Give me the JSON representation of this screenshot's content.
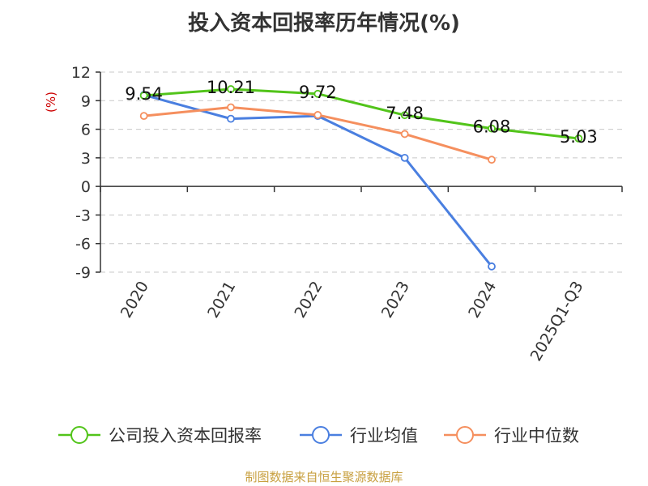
{
  "chart_data": {
    "type": "line",
    "title": "投入资本回报率历年情况(%)",
    "ylabel": "(%)",
    "categories": [
      "2020",
      "2021",
      "2022",
      "2023",
      "2024",
      "2025Q1-Q3"
    ],
    "ylim": [
      -9,
      12
    ],
    "yticks": [
      12,
      9,
      6,
      3,
      0,
      -3,
      -6,
      -9
    ],
    "grid": true,
    "legend_position": "bottom",
    "series": [
      {
        "name": "公司投入资本回报率",
        "color": "#52c41a",
        "values": [
          9.54,
          10.21,
          9.72,
          7.48,
          6.08,
          5.03
        ],
        "labels": [
          "9.54",
          "10.21",
          "9.72",
          "7.48",
          "6.08",
          "5.03"
        ]
      },
      {
        "name": "行业均值",
        "color": "#4a7fe0",
        "values": [
          9.6,
          7.1,
          7.4,
          3.0,
          -8.4,
          null
        ]
      },
      {
        "name": "行业中位数",
        "color": "#f58f5e",
        "values": [
          7.4,
          8.3,
          7.5,
          5.5,
          2.8,
          null
        ]
      }
    ]
  },
  "source": "制图数据来自恒生聚源数据库"
}
